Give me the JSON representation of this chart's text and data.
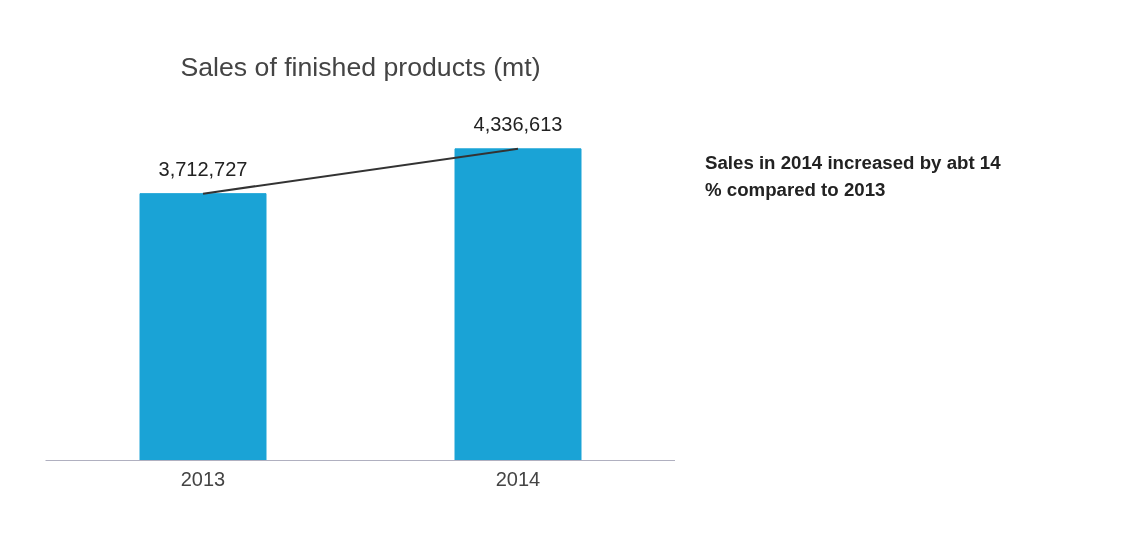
{
  "chart_data": {
    "type": "bar",
    "title": "Sales of finished products (mt)",
    "categories": [
      "2013",
      "2014"
    ],
    "series": [
      {
        "color": "#1aa3d6",
        "values": [
          3712727,
          4336613
        ],
        "value_labels": [
          "3,712,727",
          "4,336,613"
        ]
      },
      {
        "type": "line",
        "color": "#333333",
        "values": [
          3712727,
          4336613
        ]
      }
    ],
    "tick_labels": "x",
    "grid": false,
    "annotations": [
      "Sales in 2014 increased by abt 14 % compared to 2013"
    ]
  }
}
